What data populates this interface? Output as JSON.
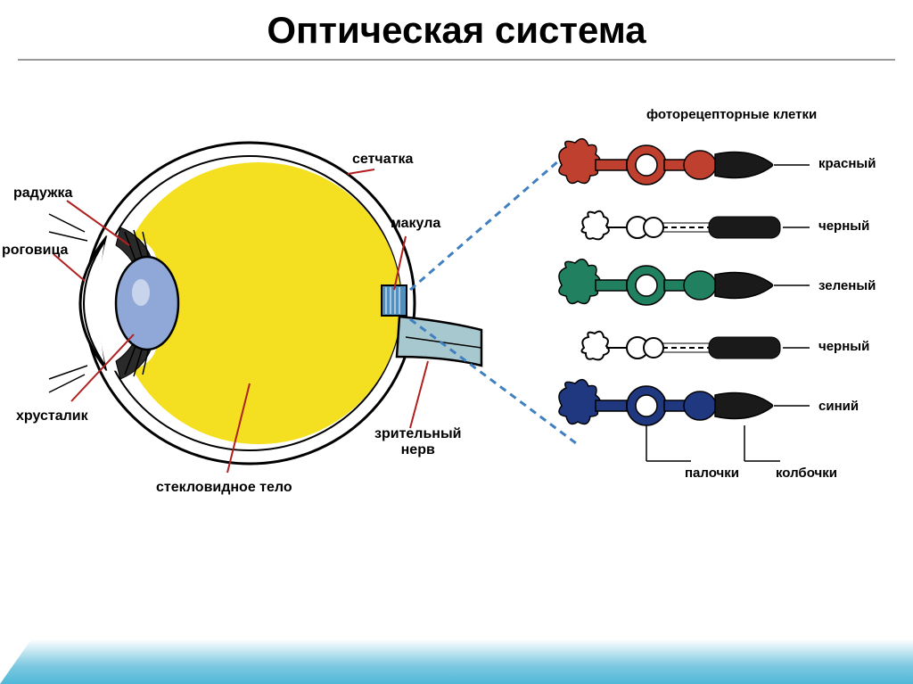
{
  "title": "Оптическая система",
  "eye": {
    "labels": {
      "iris": "радужка",
      "cornea": "роговица",
      "lens": "хрусталик",
      "vitreous": "стекловидное тело",
      "retina": "сетчатка",
      "macula": "макула",
      "optic_nerve": "зрительный нерв"
    },
    "colors": {
      "vitreous": "#f4e020",
      "lens": "#8fa8d8",
      "iris_dark": "#2a2a2a",
      "macula_box": "#5090c0",
      "nerve_fill": "#a8c8d0",
      "outline": "#000000",
      "pointer": "#b02020"
    }
  },
  "photoreceptors": {
    "header": "фоторецепторные клетки",
    "rods_label": "палочки",
    "cones_label": "колбочки",
    "cells": [
      {
        "color": "#c04030",
        "label": "красный",
        "type": "cone"
      },
      {
        "color": "#ffffff",
        "label": "черный",
        "type": "rod"
      },
      {
        "color": "#208060",
        "label": "зеленый",
        "type": "cone"
      },
      {
        "color": "#ffffff",
        "label": "черный",
        "type": "rod"
      },
      {
        "color": "#203880",
        "label": "синий",
        "type": "cone"
      }
    ]
  },
  "colors": {
    "title": "#000000",
    "background": "#ffffff",
    "dashed_line": "#4080c0"
  }
}
